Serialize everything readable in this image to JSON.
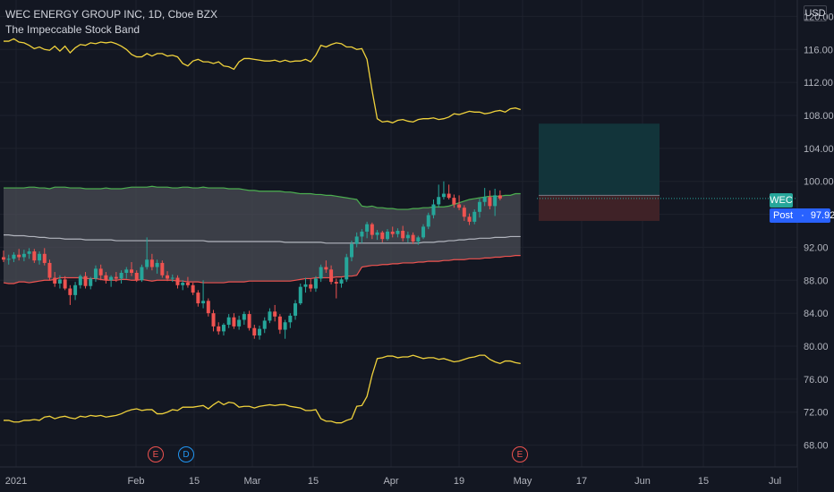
{
  "header": {
    "title": "WEC ENERGY GROUP INC, 1D, Cboe BZX",
    "subtitle": "The Impeccable Stock Band",
    "currency": "USD"
  },
  "price_tags": {
    "symbol": "WEC",
    "post_label": "Post",
    "post_value": "97.92"
  },
  "events": [
    {
      "letter": "E",
      "x_label": "Feb+15d"
    },
    {
      "letter": "D",
      "x_label": "Feb+25d"
    },
    {
      "letter": "E",
      "x_label": "May"
    }
  ],
  "colors": {
    "background": "#131722",
    "up": "#26a69a",
    "down": "#ef5350",
    "band_fill": "#4a4c54",
    "upper_band": "#4caf50",
    "lower_band": "#ef5350",
    "mid_band": "#b2b5be",
    "outer_band": "#f0d23c",
    "profit_zone": "#12343a",
    "loss_zone": "#3f2227"
  },
  "chart_data": {
    "type": "candlestick",
    "title": "WEC ENERGY GROUP INC, 1D, Cboe BZX",
    "y_ticks": [
      "120.00",
      "116.00",
      "112.00",
      "108.00",
      "104.00",
      "100.00",
      "96.00",
      "92.00",
      "88.00",
      "84.00",
      "80.00",
      "76.00",
      "72.00",
      "68.00"
    ],
    "x_ticks": [
      "2021",
      "Feb",
      "15",
      "Mar",
      "15",
      "Apr",
      "19",
      "May",
      "17",
      "Jun",
      "15",
      "Jul"
    ],
    "ylim": [
      66,
      122
    ],
    "candles": [
      {
        "o": 90.8,
        "h": 91.6,
        "l": 90.2,
        "c": 90.5
      },
      {
        "o": 90.5,
        "h": 91.1,
        "l": 89.9,
        "c": 90.6
      },
      {
        "o": 90.6,
        "h": 91.4,
        "l": 90.2,
        "c": 91.1
      },
      {
        "o": 91.1,
        "h": 91.8,
        "l": 90.4,
        "c": 90.8
      },
      {
        "o": 90.8,
        "h": 91.7,
        "l": 90.3,
        "c": 91.2
      },
      {
        "o": 91.2,
        "h": 91.9,
        "l": 90.6,
        "c": 91.5
      },
      {
        "o": 91.5,
        "h": 91.8,
        "l": 90.1,
        "c": 90.4
      },
      {
        "o": 90.4,
        "h": 91.5,
        "l": 89.9,
        "c": 91.2
      },
      {
        "o": 91.2,
        "h": 91.9,
        "l": 89.8,
        "c": 90.1
      },
      {
        "o": 90.1,
        "h": 90.5,
        "l": 88.0,
        "c": 88.3
      },
      {
        "o": 88.3,
        "h": 89.0,
        "l": 87.2,
        "c": 87.6
      },
      {
        "o": 87.6,
        "h": 88.6,
        "l": 87.0,
        "c": 88.1
      },
      {
        "o": 88.1,
        "h": 88.5,
        "l": 86.8,
        "c": 87.0
      },
      {
        "o": 87.0,
        "h": 87.4,
        "l": 85.0,
        "c": 86.2
      },
      {
        "o": 86.2,
        "h": 87.8,
        "l": 85.6,
        "c": 87.4
      },
      {
        "o": 87.4,
        "h": 88.7,
        "l": 87.0,
        "c": 88.5
      },
      {
        "o": 88.5,
        "h": 89.0,
        "l": 87.0,
        "c": 87.3
      },
      {
        "o": 87.3,
        "h": 88.4,
        "l": 86.9,
        "c": 88.2
      },
      {
        "o": 88.2,
        "h": 89.8,
        "l": 87.8,
        "c": 89.4
      },
      {
        "o": 89.4,
        "h": 89.9,
        "l": 88.0,
        "c": 88.6
      },
      {
        "o": 88.6,
        "h": 89.0,
        "l": 87.6,
        "c": 88.0
      },
      {
        "o": 88.0,
        "h": 88.6,
        "l": 87.2,
        "c": 88.4
      },
      {
        "o": 88.4,
        "h": 89.0,
        "l": 87.8,
        "c": 88.2
      },
      {
        "o": 88.2,
        "h": 89.2,
        "l": 87.6,
        "c": 88.9
      },
      {
        "o": 88.9,
        "h": 89.6,
        "l": 88.2,
        "c": 89.3
      },
      {
        "o": 89.3,
        "h": 90.2,
        "l": 88.5,
        "c": 88.9
      },
      {
        "o": 88.9,
        "h": 89.2,
        "l": 87.8,
        "c": 88.0
      },
      {
        "o": 88.0,
        "h": 89.9,
        "l": 87.8,
        "c": 89.6
      },
      {
        "o": 89.6,
        "h": 93.2,
        "l": 89.3,
        "c": 90.5
      },
      {
        "o": 90.5,
        "h": 91.2,
        "l": 89.2,
        "c": 89.6
      },
      {
        "o": 89.6,
        "h": 90.5,
        "l": 88.8,
        "c": 90.1
      },
      {
        "o": 90.1,
        "h": 90.4,
        "l": 88.3,
        "c": 88.6
      },
      {
        "o": 88.6,
        "h": 89.1,
        "l": 87.9,
        "c": 88.2
      },
      {
        "o": 88.2,
        "h": 88.7,
        "l": 87.8,
        "c": 88.3
      },
      {
        "o": 88.3,
        "h": 88.6,
        "l": 87.0,
        "c": 87.4
      },
      {
        "o": 87.4,
        "h": 88.0,
        "l": 86.8,
        "c": 87.7
      },
      {
        "o": 87.7,
        "h": 88.4,
        "l": 87.1,
        "c": 87.4
      },
      {
        "o": 87.4,
        "h": 87.7,
        "l": 86.2,
        "c": 86.5
      },
      {
        "o": 86.5,
        "h": 86.8,
        "l": 84.8,
        "c": 85.2
      },
      {
        "o": 85.2,
        "h": 88.0,
        "l": 84.6,
        "c": 85.5
      },
      {
        "o": 85.5,
        "h": 85.8,
        "l": 83.6,
        "c": 84.0
      },
      {
        "o": 84.0,
        "h": 84.4,
        "l": 81.8,
        "c": 82.4
      },
      {
        "o": 82.4,
        "h": 82.9,
        "l": 81.4,
        "c": 81.8
      },
      {
        "o": 81.8,
        "h": 82.8,
        "l": 81.3,
        "c": 82.6
      },
      {
        "o": 82.6,
        "h": 83.9,
        "l": 82.2,
        "c": 83.5
      },
      {
        "o": 83.5,
        "h": 84.0,
        "l": 82.1,
        "c": 82.4
      },
      {
        "o": 82.4,
        "h": 83.7,
        "l": 82.0,
        "c": 83.2
      },
      {
        "o": 83.2,
        "h": 84.2,
        "l": 82.6,
        "c": 83.9
      },
      {
        "o": 83.9,
        "h": 84.3,
        "l": 81.9,
        "c": 82.2
      },
      {
        "o": 82.2,
        "h": 82.6,
        "l": 80.9,
        "c": 81.3
      },
      {
        "o": 81.3,
        "h": 82.5,
        "l": 80.8,
        "c": 82.1
      },
      {
        "o": 82.1,
        "h": 83.5,
        "l": 81.6,
        "c": 83.1
      },
      {
        "o": 83.1,
        "h": 84.6,
        "l": 82.8,
        "c": 84.2
      },
      {
        "o": 84.2,
        "h": 85.0,
        "l": 83.0,
        "c": 83.6
      },
      {
        "o": 83.6,
        "h": 83.9,
        "l": 81.5,
        "c": 82.0
      },
      {
        "o": 82.0,
        "h": 83.2,
        "l": 80.9,
        "c": 82.9
      },
      {
        "o": 82.9,
        "h": 84.0,
        "l": 82.2,
        "c": 83.7
      },
      {
        "o": 83.7,
        "h": 85.6,
        "l": 83.2,
        "c": 85.2
      },
      {
        "o": 85.2,
        "h": 87.6,
        "l": 85.0,
        "c": 87.2
      },
      {
        "o": 87.2,
        "h": 88.3,
        "l": 86.5,
        "c": 87.5
      },
      {
        "o": 87.5,
        "h": 88.2,
        "l": 86.6,
        "c": 87.0
      },
      {
        "o": 87.0,
        "h": 88.5,
        "l": 86.6,
        "c": 88.2
      },
      {
        "o": 88.2,
        "h": 89.9,
        "l": 87.8,
        "c": 89.6
      },
      {
        "o": 89.6,
        "h": 90.4,
        "l": 88.9,
        "c": 89.3
      },
      {
        "o": 89.3,
        "h": 89.8,
        "l": 87.5,
        "c": 87.8
      },
      {
        "o": 87.8,
        "h": 88.2,
        "l": 85.8,
        "c": 87.6
      },
      {
        "o": 87.6,
        "h": 88.3,
        "l": 87.1,
        "c": 88.1
      },
      {
        "o": 88.1,
        "h": 91.2,
        "l": 87.8,
        "c": 90.8
      },
      {
        "o": 90.8,
        "h": 92.8,
        "l": 90.3,
        "c": 92.4
      },
      {
        "o": 92.4,
        "h": 93.8,
        "l": 92.0,
        "c": 93.3
      },
      {
        "o": 93.3,
        "h": 94.2,
        "l": 92.5,
        "c": 93.9
      },
      {
        "o": 93.9,
        "h": 95.1,
        "l": 93.1,
        "c": 94.8
      },
      {
        "o": 94.8,
        "h": 95.0,
        "l": 93.0,
        "c": 93.5
      },
      {
        "o": 93.5,
        "h": 94.1,
        "l": 92.9,
        "c": 93.8
      },
      {
        "o": 93.8,
        "h": 94.0,
        "l": 92.6,
        "c": 93.0
      },
      {
        "o": 93.0,
        "h": 94.2,
        "l": 92.8,
        "c": 93.9
      },
      {
        "o": 93.9,
        "h": 94.5,
        "l": 93.2,
        "c": 93.6
      },
      {
        "o": 93.6,
        "h": 94.3,
        "l": 93.2,
        "c": 94.0
      },
      {
        "o": 94.0,
        "h": 94.6,
        "l": 92.7,
        "c": 93.1
      },
      {
        "o": 93.1,
        "h": 93.9,
        "l": 92.6,
        "c": 93.5
      },
      {
        "o": 93.5,
        "h": 93.8,
        "l": 92.4,
        "c": 92.7
      },
      {
        "o": 92.7,
        "h": 93.4,
        "l": 92.3,
        "c": 93.2
      },
      {
        "o": 93.2,
        "h": 94.8,
        "l": 93.0,
        "c": 94.5
      },
      {
        "o": 94.5,
        "h": 96.2,
        "l": 94.2,
        "c": 95.9
      },
      {
        "o": 95.9,
        "h": 97.8,
        "l": 95.5,
        "c": 97.2
      },
      {
        "o": 97.2,
        "h": 99.6,
        "l": 96.8,
        "c": 98.1
      },
      {
        "o": 98.1,
        "h": 100.0,
        "l": 97.8,
        "c": 98.5
      },
      {
        "o": 98.5,
        "h": 99.6,
        "l": 97.8,
        "c": 98.0
      },
      {
        "o": 98.0,
        "h": 98.4,
        "l": 96.8,
        "c": 97.2
      },
      {
        "o": 97.2,
        "h": 98.3,
        "l": 96.5,
        "c": 96.8
      },
      {
        "o": 96.8,
        "h": 97.1,
        "l": 95.2,
        "c": 95.7
      },
      {
        "o": 95.7,
        "h": 96.1,
        "l": 94.7,
        "c": 95.1
      },
      {
        "o": 95.1,
        "h": 96.6,
        "l": 94.8,
        "c": 96.3
      },
      {
        "o": 96.3,
        "h": 97.9,
        "l": 95.6,
        "c": 97.5
      },
      {
        "o": 97.5,
        "h": 99.2,
        "l": 97.0,
        "c": 98.1
      },
      {
        "o": 98.1,
        "h": 98.9,
        "l": 96.6,
        "c": 97.0
      },
      {
        "o": 97.0,
        "h": 99.1,
        "l": 95.8,
        "c": 98.3
      },
      {
        "o": 98.3,
        "h": 98.9,
        "l": 97.7,
        "c": 97.92
      }
    ],
    "outer_upper": [
      117,
      117,
      117.3,
      116.9,
      116.8,
      116.5,
      116.1,
      116.3,
      116,
      115.9,
      116.4,
      115.8,
      116.4,
      115.6,
      116.2,
      116.6,
      116.5,
      116.8,
      116.7,
      116.9,
      116.8,
      116.9,
      116.7,
      116.4,
      116,
      115.4,
      115.1,
      115.1,
      115.5,
      115.2,
      115.5,
      115.5,
      115.2,
      115.3,
      115.1,
      114.3,
      114,
      114.6,
      114.8,
      114.5,
      114.5,
      114.3,
      114.5,
      114,
      113.9,
      113.6,
      114.5,
      114.9,
      114.9,
      114.8,
      114.7,
      114.6,
      114.6,
      114.7,
      114.5,
      114.7,
      114.5,
      114.6,
      114.6,
      114.8,
      114.5,
      115.3,
      116.5,
      116.3,
      116.6,
      116.8,
      116.7,
      116.3,
      116.3,
      116,
      116.1,
      114.8,
      111,
      107.6,
      107.2,
      107.3,
      107.1,
      107.4,
      107.5,
      107.3,
      107.2,
      107.5,
      107.6,
      107.6,
      107.7,
      107.5,
      107.6,
      107.8,
      108.2,
      108.1,
      108.3,
      108.5,
      108.4,
      108.4,
      108.2,
      108.3,
      108.5,
      108.6,
      108.4,
      108.8,
      108.9,
      108.7
    ],
    "outer_lower": [
      71,
      71,
      70.8,
      70.8,
      71,
      71,
      71.1,
      71,
      71.4,
      71.5,
      71.2,
      71.4,
      71.5,
      71.3,
      71.2,
      71.5,
      71.4,
      71.6,
      71.5,
      71.6,
      71.4,
      71.5,
      71.6,
      71.8,
      72.1,
      72.3,
      72.4,
      72.2,
      72.3,
      72.3,
      71.8,
      71.8,
      72,
      72.3,
      72.2,
      72.6,
      72.6,
      72.6,
      72.7,
      72.8,
      72.4,
      72.9,
      73.3,
      72.9,
      73.2,
      73.1,
      72.6,
      72.7,
      72.7,
      72.5,
      72.7,
      72.8,
      72.9,
      72.8,
      72.9,
      72.9,
      72.7,
      72.6,
      72.5,
      72.2,
      72.2,
      72.3,
      71.2,
      70.9,
      70.9,
      70.7,
      70.7,
      71,
      71.2,
      72.7,
      72.8,
      73.9,
      76.5,
      78.5,
      78.6,
      78.8,
      78.8,
      78.6,
      78.7,
      78.7,
      78.9,
      78.7,
      78.5,
      78.6,
      78.6,
      78.4,
      78.5,
      78.3,
      78.1,
      78.2,
      78.4,
      78.6,
      78.7,
      78.9,
      78.9,
      78.4,
      78.1,
      77.9,
      78.2,
      78.2,
      78,
      77.9
    ],
    "band_upper": [
      99.2,
      99.2,
      99.2,
      99.2,
      99.2,
      99.3,
      99.3,
      99.2,
      99.2,
      99.1,
      99.3,
      99.3,
      99.3,
      99.2,
      99.2,
      99.2,
      99.1,
      99.1,
      99.1,
      99.1,
      99.2,
      99.1,
      99.1,
      99.1,
      99.2,
      99.3,
      99.3,
      99.3,
      99.3,
      99.4,
      99.3,
      99.3,
      99.3,
      99.2,
      99.2,
      99.3,
      99.3,
      99.2,
      99.2,
      99.3,
      99.2,
      99.2,
      99.2,
      99.2,
      99.1,
      99.1,
      99.1,
      99.0,
      98.9,
      98.9,
      98.8,
      98.8,
      98.8,
      98.8,
      98.8,
      98.7,
      98.7,
      98.6,
      98.5,
      98.5,
      98.5,
      98.4,
      98.4,
      98.3,
      98.3,
      98.2,
      98.1,
      98.0,
      97.9,
      97.8,
      97.0,
      96.9,
      97.0,
      96.8,
      96.8,
      96.7,
      96.7,
      96.6,
      96.6,
      96.6,
      96.7,
      96.7,
      96.8,
      96.8,
      96.9,
      96.9,
      96.9,
      97.0,
      97.2,
      97.4,
      97.6,
      97.8,
      97.9,
      98.0,
      98.1,
      98.2,
      98.2,
      98.2,
      98.3,
      98.3,
      98.5,
      98.5
    ],
    "band_mid": [
      93.5,
      93.5,
      93.4,
      93.4,
      93.4,
      93.3,
      93.3,
      93.2,
      93.2,
      93.1,
      93.1,
      93.1,
      93.0,
      93.0,
      93.0,
      93.0,
      92.9,
      92.9,
      92.9,
      92.9,
      92.9,
      92.9,
      92.8,
      92.8,
      92.8,
      92.8,
      92.8,
      92.8,
      92.8,
      92.8,
      92.8,
      92.8,
      92.8,
      92.8,
      92.8,
      92.8,
      92.8,
      92.8,
      92.8,
      92.8,
      92.7,
      92.7,
      92.7,
      92.7,
      92.7,
      92.7,
      92.7,
      92.7,
      92.7,
      92.7,
      92.7,
      92.7,
      92.7,
      92.7,
      92.7,
      92.6,
      92.6,
      92.6,
      92.6,
      92.6,
      92.6,
      92.6,
      92.6,
      92.5,
      92.5,
      92.5,
      92.5,
      92.5,
      92.5,
      92.5,
      92.5,
      92.5,
      92.5,
      92.5,
      92.5,
      92.5,
      92.5,
      92.5,
      92.5,
      92.5,
      92.5,
      92.5,
      92.6,
      92.6,
      92.6,
      92.7,
      92.7,
      92.8,
      92.8,
      92.9,
      92.9,
      93.0,
      93.0,
      93.1,
      93.1,
      93.1,
      93.2,
      93.2,
      93.2,
      93.3,
      93.3,
      93.3
    ],
    "band_lower": [
      87.7,
      87.6,
      87.6,
      87.8,
      87.8,
      87.7,
      87.8,
      87.9,
      88.0,
      88.0,
      88.1,
      88.3,
      88.3,
      88.3,
      88.3,
      88.3,
      88.2,
      88.2,
      88.2,
      88.1,
      88.0,
      88.0,
      88.0,
      88.1,
      88.1,
      88.0,
      88.0,
      88.1,
      88.0,
      87.9,
      88.0,
      88.0,
      88.0,
      88.0,
      87.9,
      87.9,
      87.8,
      87.8,
      87.8,
      87.7,
      87.7,
      87.7,
      87.7,
      87.7,
      87.8,
      87.8,
      87.8,
      87.8,
      87.9,
      87.9,
      87.9,
      87.9,
      87.9,
      87.9,
      87.9,
      87.9,
      87.9,
      88.0,
      88.1,
      88.2,
      88.2,
      88.3,
      88.3,
      88.3,
      88.3,
      88.4,
      88.4,
      88.5,
      88.5,
      88.6,
      89.6,
      89.7,
      89.8,
      89.8,
      89.9,
      89.9,
      90.0,
      90.0,
      90.1,
      90.1,
      90.1,
      90.2,
      90.2,
      90.3,
      90.3,
      90.3,
      90.4,
      90.4,
      90.5,
      90.5,
      90.5,
      90.6,
      90.6,
      90.6,
      90.7,
      90.7,
      90.8,
      90.8,
      90.9,
      90.9,
      91.0,
      91.0
    ],
    "position_tool": {
      "entry": 98.3,
      "target": 107.0,
      "stop": 95.2
    },
    "last_price": 97.92
  }
}
